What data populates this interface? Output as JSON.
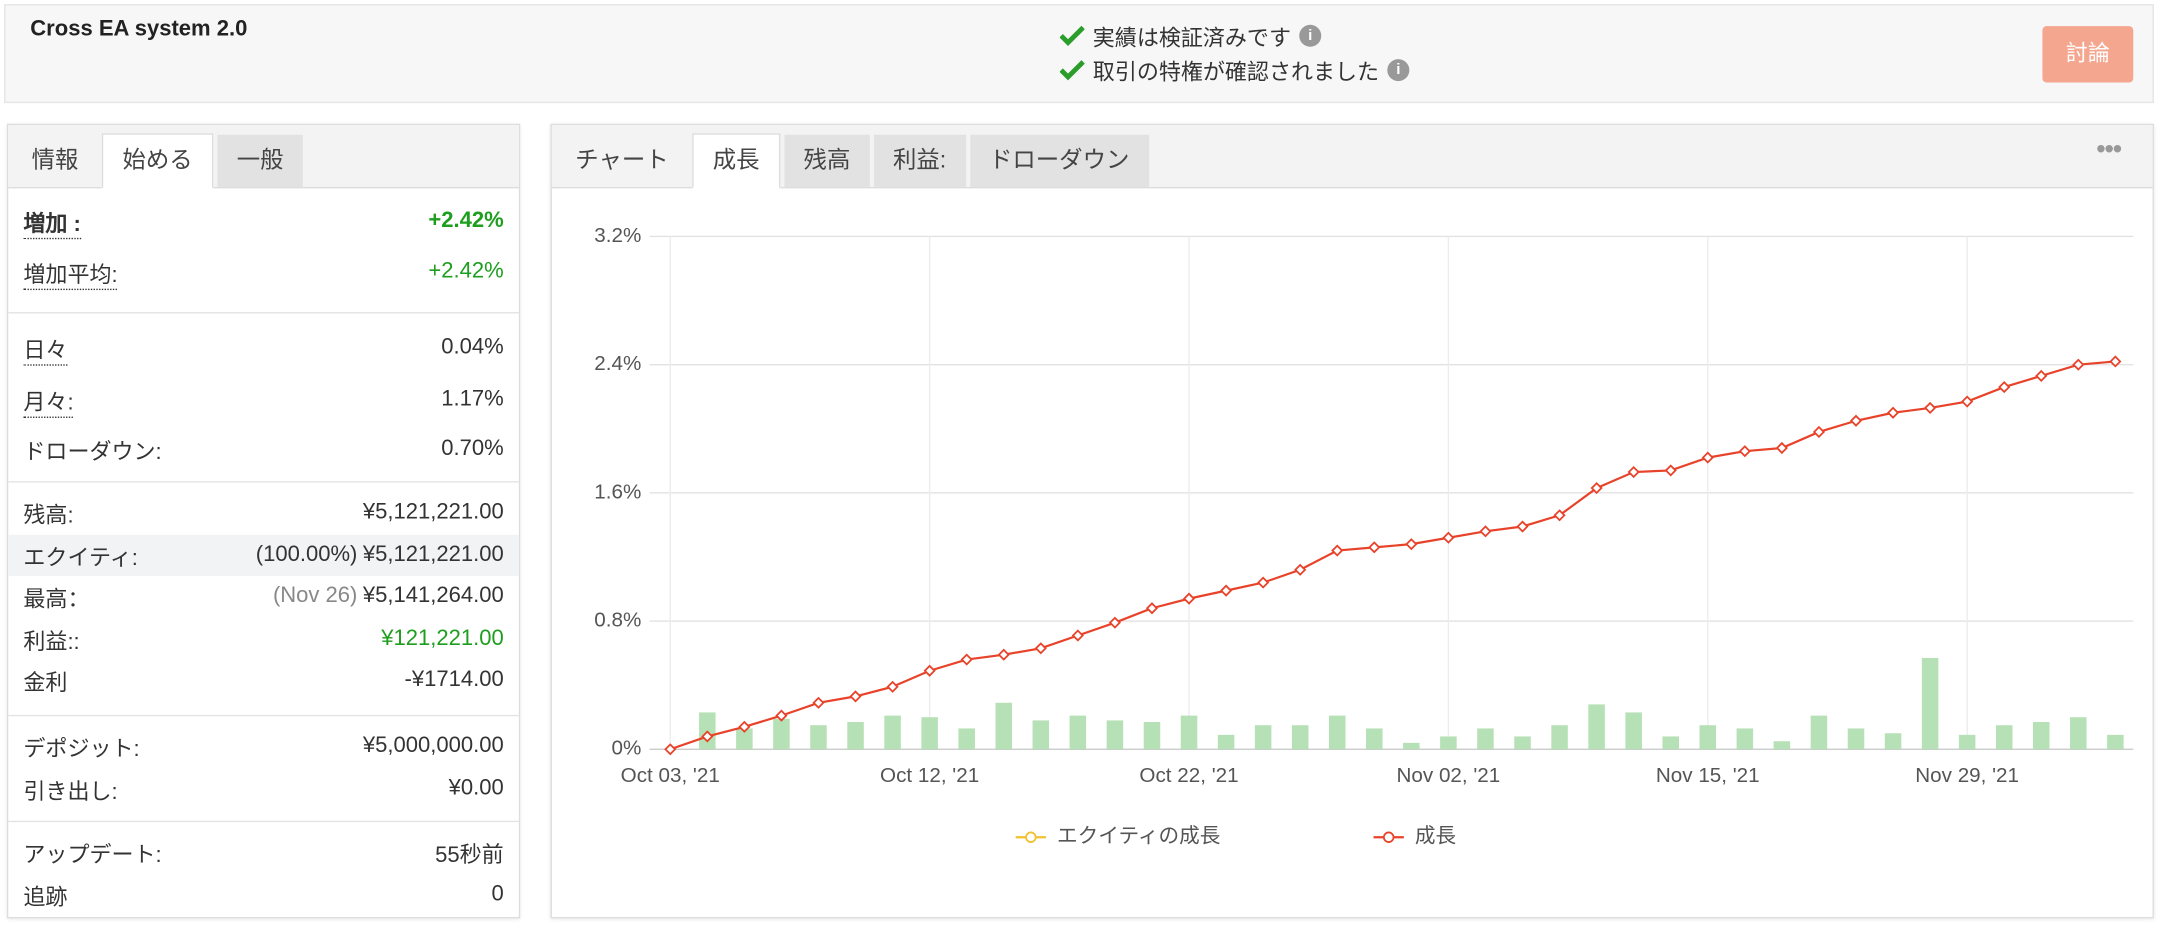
{
  "header": {
    "title": "Cross EA system 2.0",
    "verifications": [
      "実績は検証済みです",
      "取引の特権が確認されました"
    ],
    "button": "討論"
  },
  "left_panel": {
    "tabs": [
      "情報",
      "始める",
      "一般"
    ],
    "rows": [
      {
        "label": "増加 :",
        "value": "+2.42%"
      },
      {
        "label": "増加平均:",
        "value": "+2.42%"
      },
      {
        "label": "日々",
        "value": "0.04%"
      },
      {
        "label": "月々:",
        "value": "1.17%"
      },
      {
        "label": "ドローダウン:",
        "value": "0.70%"
      },
      {
        "label": "残高:",
        "value": "¥5,121,221.00"
      },
      {
        "label": "エクイティ:",
        "note": "(100.00%)",
        "value": "¥5,121,221.00"
      },
      {
        "label": "最高：",
        "note": "(Nov 26)",
        "value": "¥5,141,264.00"
      },
      {
        "label": "利益::",
        "value": "¥121,221.00"
      },
      {
        "label": "金利",
        "value": "-¥1714.00"
      },
      {
        "label": "デポジット:",
        "value": "¥5,000,000.00"
      },
      {
        "label": "引き出し:",
        "value": "¥0.00"
      },
      {
        "label": "アップデート:",
        "value": "55秒前"
      },
      {
        "label": "追跡",
        "value": "0"
      }
    ]
  },
  "chart_panel": {
    "tabs": [
      "チャート",
      "成長",
      "残高",
      "利益:",
      "ドローダウン"
    ]
  },
  "chart_data": {
    "type": "line",
    "categories": [
      "Oct 03, '21",
      null,
      null,
      null,
      null,
      null,
      null,
      "Oct 12, '21",
      null,
      null,
      null,
      null,
      null,
      null,
      "Oct 22, '21",
      null,
      null,
      null,
      null,
      null,
      null,
      "Nov 02, '21",
      null,
      null,
      null,
      null,
      null,
      null,
      "Nov 15, '21",
      null,
      null,
      null,
      null,
      null,
      null,
      "Nov 29, '21",
      null,
      null,
      null,
      null
    ],
    "series": [
      {
        "name": "エクイティの成長",
        "color": "#f2c12e",
        "values": [
          null,
          null,
          null,
          null,
          null,
          null,
          null,
          null,
          null,
          null,
          null,
          null,
          null,
          null,
          null,
          null,
          null,
          null,
          null,
          null,
          null,
          null,
          null,
          null,
          null,
          null,
          null,
          null,
          null,
          null,
          null,
          null,
          null,
          null,
          null,
          null,
          null,
          null,
          null,
          null
        ]
      },
      {
        "name": "成長",
        "color": "#e8432a",
        "values": [
          0,
          0.08,
          0.14,
          0.21,
          0.29,
          0.33,
          0.39,
          0.49,
          0.56,
          0.59,
          0.63,
          0.71,
          0.79,
          0.88,
          0.94,
          0.99,
          1.04,
          1.12,
          1.24,
          1.26,
          1.28,
          1.32,
          1.36,
          1.39,
          1.46,
          1.63,
          1.73,
          1.74,
          1.82,
          1.86,
          1.88,
          1.98,
          2.05,
          2.1,
          2.13,
          2.17,
          2.26,
          2.33,
          2.4,
          2.42
        ]
      }
    ],
    "bars": {
      "color": "#b6e0b6",
      "values": [
        null,
        0.23,
        0.13,
        0.19,
        0.15,
        0.17,
        0.21,
        0.2,
        0.13,
        0.29,
        0.18,
        0.21,
        0.18,
        0.17,
        0.21,
        0.09,
        0.15,
        0.15,
        0.21,
        0.13,
        0.04,
        0.08,
        0.13,
        0.08,
        0.15,
        0.28,
        0.23,
        0.08,
        0.15,
        0.13,
        0.05,
        0.21,
        0.13,
        0.1,
        0.57,
        0.09,
        0.15,
        0.17,
        0.2,
        0.09
      ]
    },
    "ylim": [
      0,
      3.2
    ],
    "yticks": [
      {
        "value": 0,
        "label": "0%"
      },
      {
        "value": 0.8,
        "label": "0.8%"
      },
      {
        "value": 1.6,
        "label": "1.6%"
      },
      {
        "value": 2.4,
        "label": "2.4%"
      },
      {
        "value": 3.2,
        "label": "3.2%"
      }
    ],
    "grid": true
  }
}
